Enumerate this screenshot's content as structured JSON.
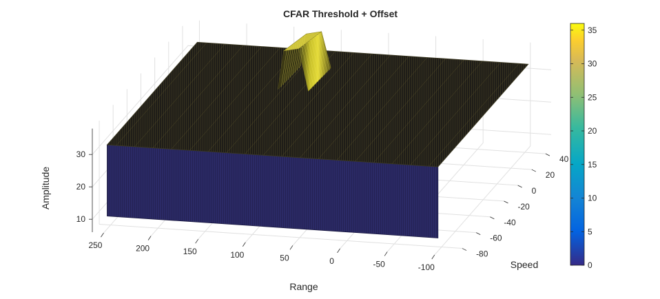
{
  "chart_data": {
    "type": "surface3d",
    "title": "CFAR Threshold + Offset",
    "xlabel": "Range",
    "ylabel": "Speed",
    "zlabel": "Amplitude",
    "x_ticks": [
      250,
      200,
      150,
      100,
      50,
      0,
      -50,
      -100
    ],
    "y_ticks": [
      -80,
      -60,
      -40,
      -20,
      0,
      20,
      40
    ],
    "z_ticks": [
      10,
      20,
      30
    ],
    "colorbar": {
      "ticks": [
        0,
        5,
        10,
        15,
        20,
        25,
        30,
        35
      ],
      "range": [
        0,
        36
      ],
      "colormap": "parula"
    },
    "surface": {
      "base_level": 32,
      "edge_floor": 10,
      "peak_amplitude": 36,
      "peak_range": 110,
      "peak_speed_span": [
        -5,
        25
      ]
    }
  }
}
